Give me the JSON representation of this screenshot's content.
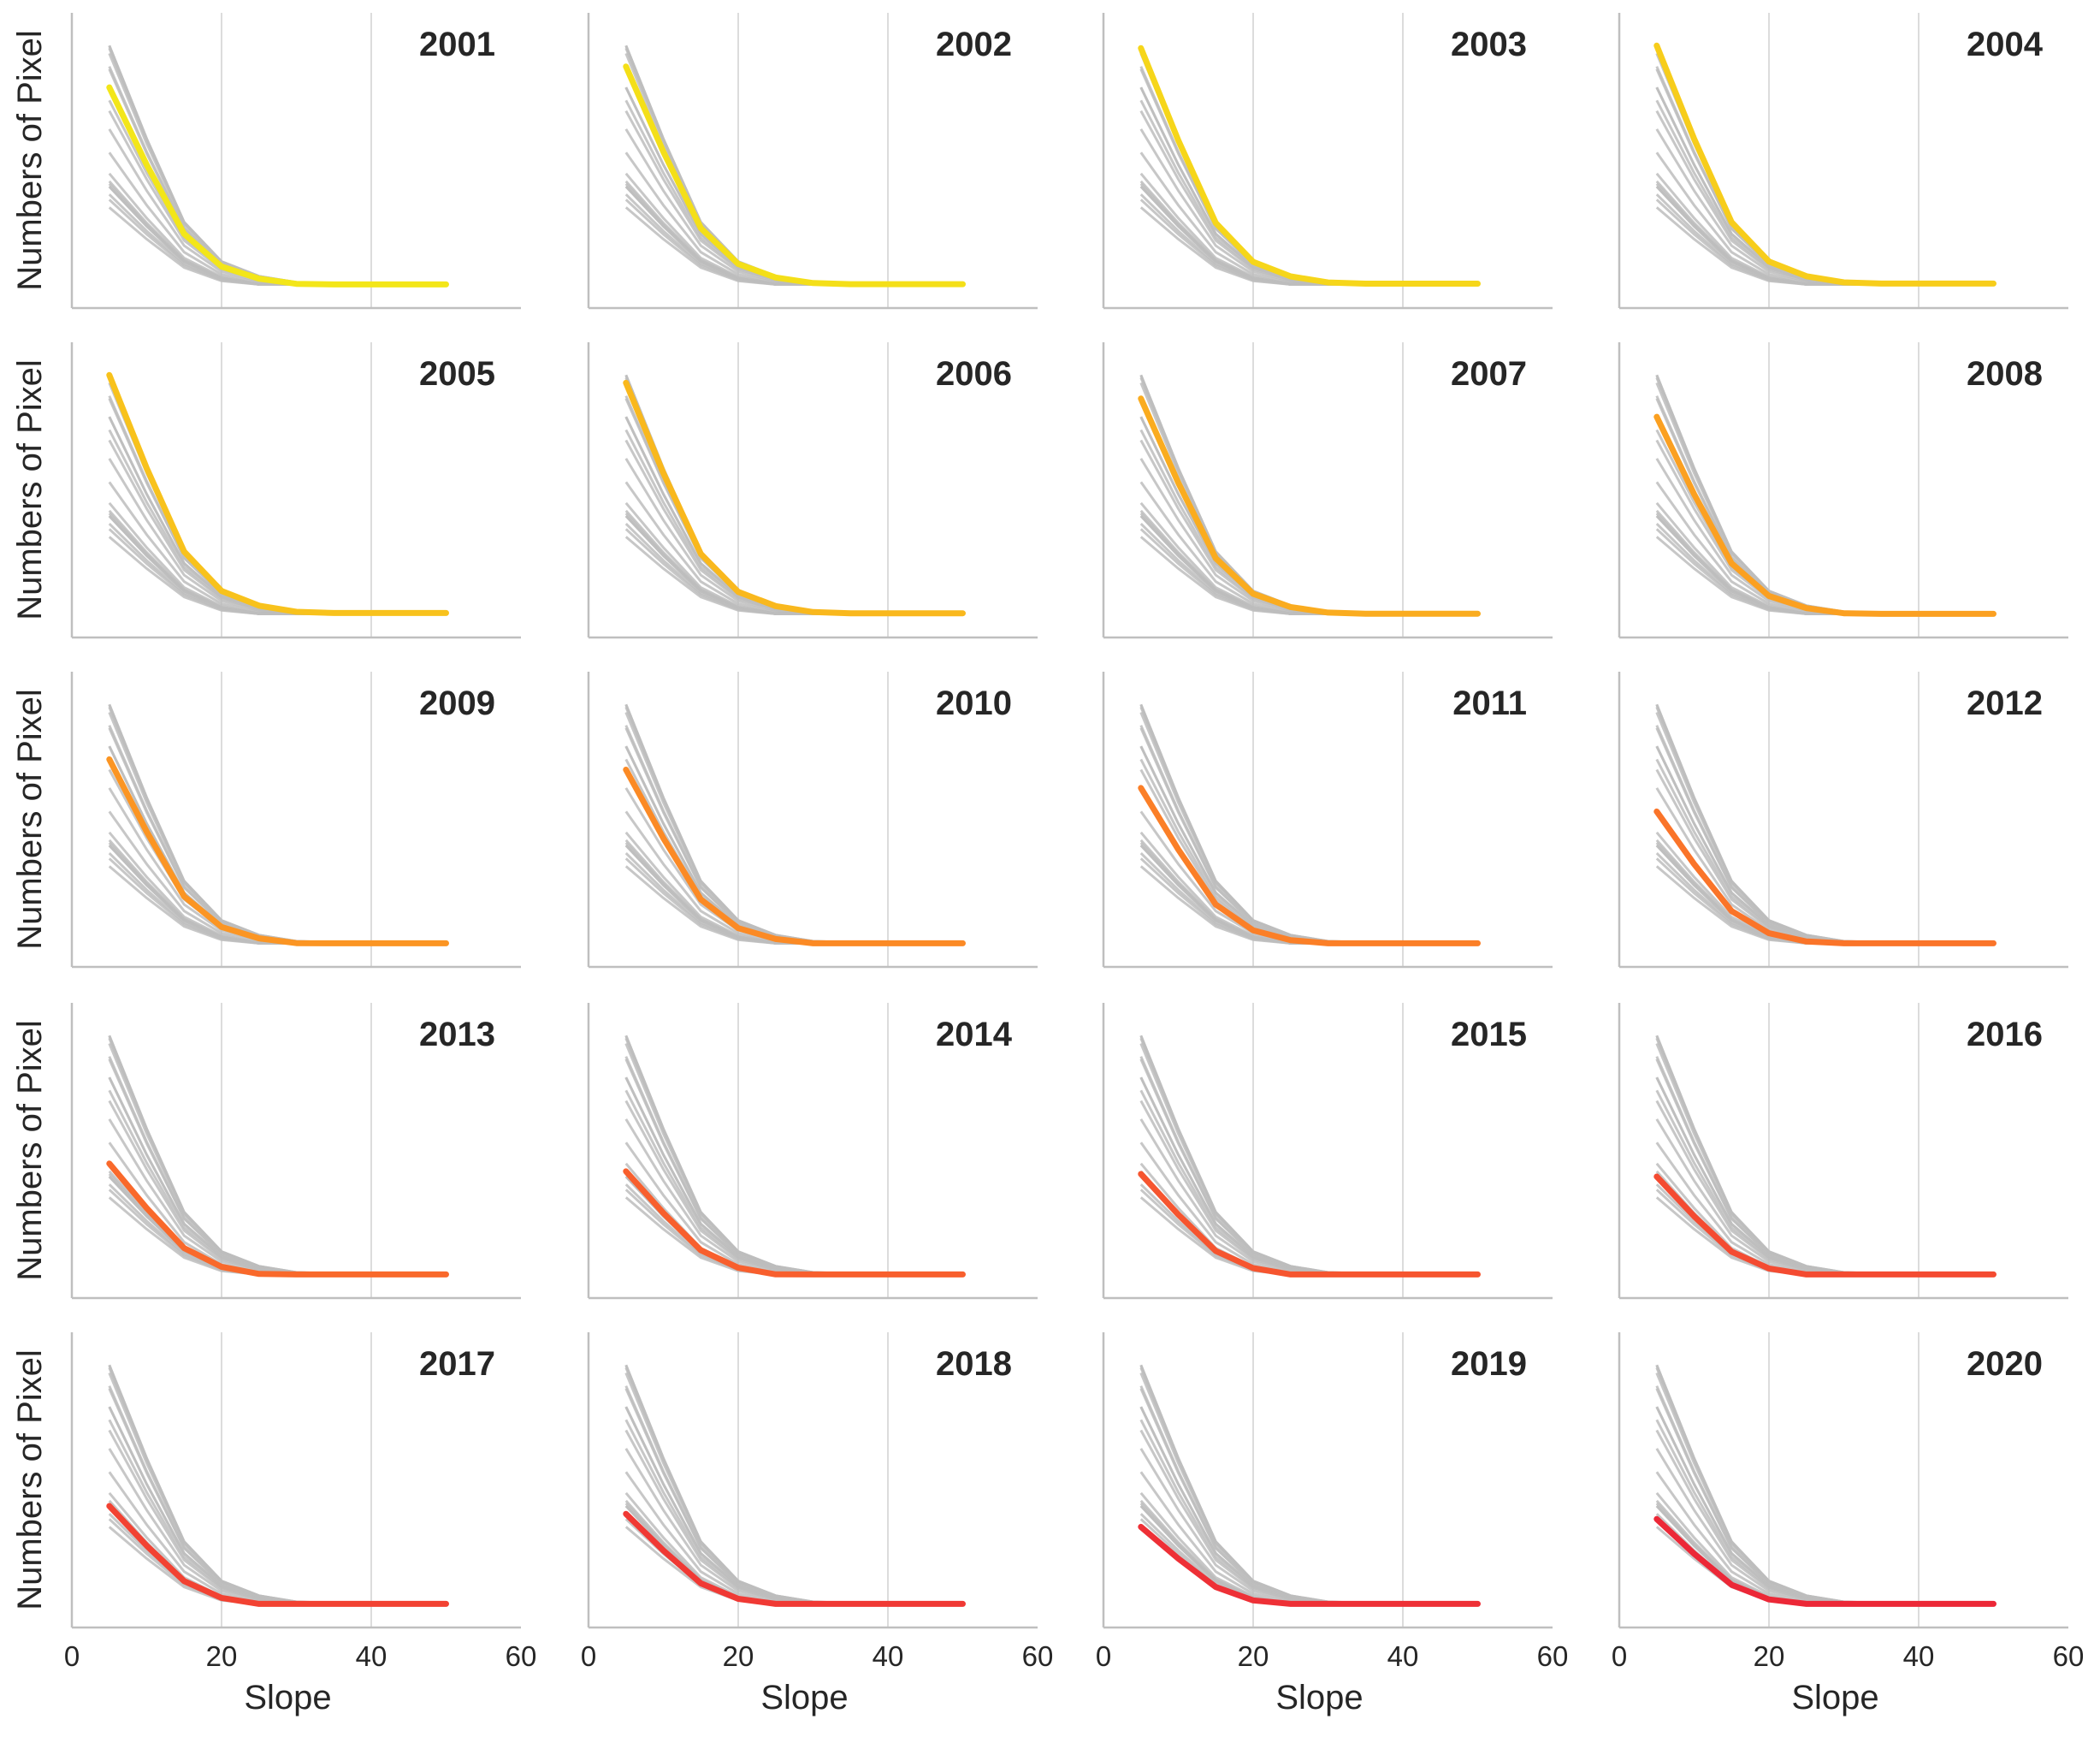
{
  "chart_data": {
    "type": "line",
    "layout": "small-multiples 5 rows x 4 columns",
    "xlabel": "Slope",
    "ylabel": "Numbers of Pixel",
    "xlim": [
      0,
      60
    ],
    "xticks": [
      0,
      20,
      40,
      60
    ],
    "y_tick_labels": "none",
    "grid": "vertical",
    "x": [
      5,
      10,
      15,
      20,
      25,
      30,
      35,
      40,
      45,
      50
    ],
    "background_color": "#bdbdbd",
    "panels": [
      {
        "title": "2001",
        "color": "#f3e619",
        "peak": 0.78
      },
      {
        "title": "2002",
        "color": "#f4df18",
        "peak": 0.86
      },
      {
        "title": "2003",
        "color": "#f6d61a",
        "peak": 0.93
      },
      {
        "title": "2004",
        "color": "#f7cd1b",
        "peak": 0.94
      },
      {
        "title": "2005",
        "color": "#f8c21c",
        "peak": 0.94
      },
      {
        "title": "2006",
        "color": "#f9b81d",
        "peak": 0.91
      },
      {
        "title": "2007",
        "color": "#faac1f",
        "peak": 0.85
      },
      {
        "title": "2008",
        "color": "#fba021",
        "peak": 0.78
      },
      {
        "title": "2009",
        "color": "#fb9523",
        "peak": 0.73
      },
      {
        "title": "2010",
        "color": "#fb8a25",
        "peak": 0.69
      },
      {
        "title": "2011",
        "color": "#fb7f27",
        "peak": 0.62
      },
      {
        "title": "2012",
        "color": "#fa7429",
        "peak": 0.53
      },
      {
        "title": "2013",
        "color": "#f9692b",
        "peak": 0.45
      },
      {
        "title": "2014",
        "color": "#f85f2d",
        "peak": 0.42
      },
      {
        "title": "2015",
        "color": "#f6552f",
        "peak": 0.41
      },
      {
        "title": "2016",
        "color": "#f44b31",
        "peak": 0.4
      },
      {
        "title": "2017",
        "color": "#f24232",
        "peak": 0.4
      },
      {
        "title": "2018",
        "color": "#f03934",
        "peak": 0.37
      },
      {
        "title": "2019",
        "color": "#ee3036",
        "peak": 0.32
      },
      {
        "title": "2020",
        "color": "#ec2837",
        "peak": 0.35
      }
    ]
  }
}
